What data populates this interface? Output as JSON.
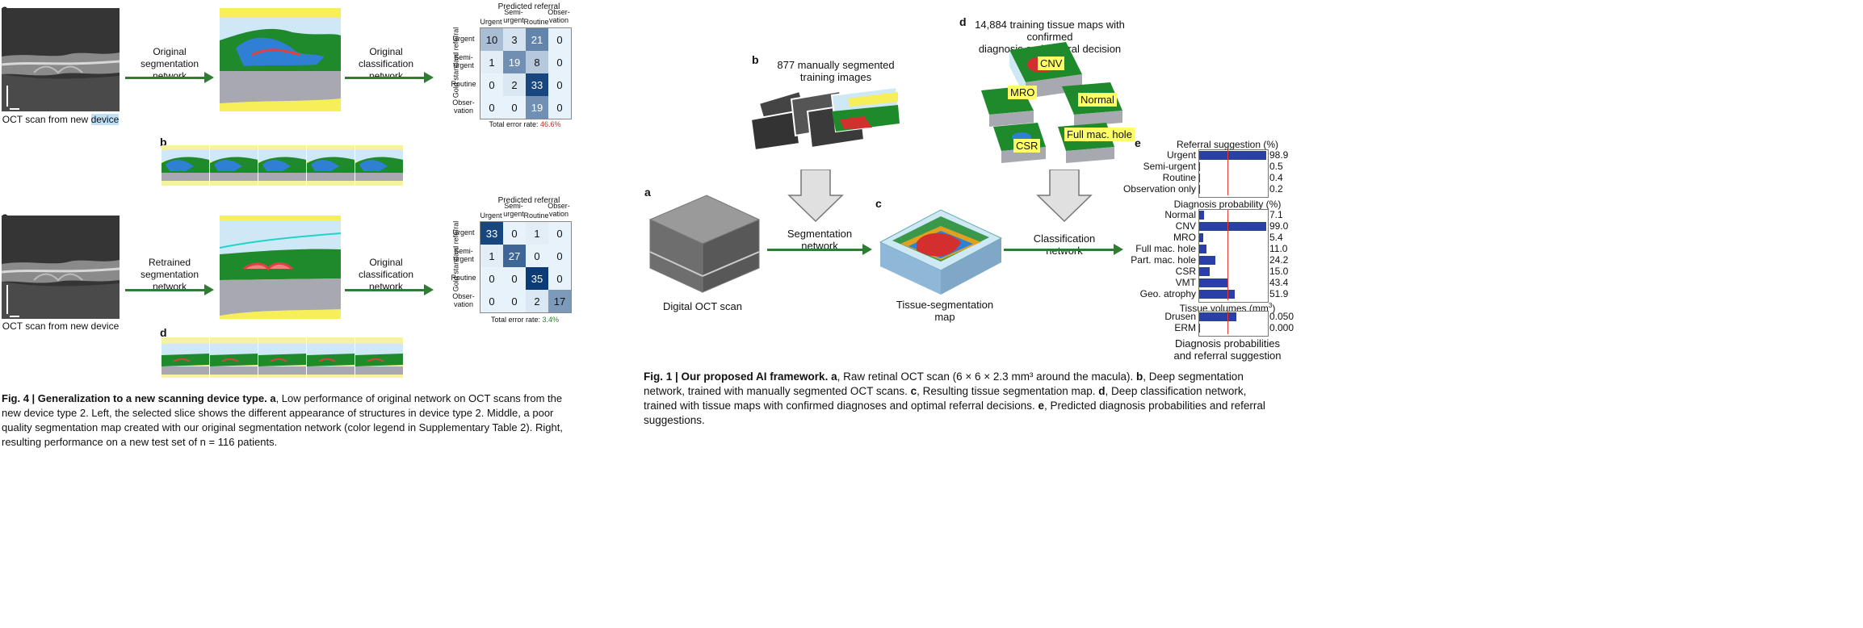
{
  "fig4": {
    "panel_a_letter": "a",
    "panel_b_letter": "b",
    "panel_c_letter": "c",
    "panel_d_letter": "d",
    "oct_label_a_prefix": "OCT scan from new ",
    "oct_label_a_highlight": "device",
    "oct_label_c": "OCT scan from new device",
    "arrow1_label": "Original\nsegmentation\nnetwork",
    "arrow2_label": "Original\nclassification\nnetwork",
    "arrow3_label": "Retrained\nsegmentation\nnetwork",
    "arrow4_label": "Original\nclassification\nnetwork",
    "cm_title": "Predicted referral",
    "cm_ylabel": "Gold standard referral",
    "cm_cols": [
      "Urgent",
      "Semi-\nurgent",
      "Routine",
      "Obser-\nvation"
    ],
    "cm_rows": [
      "Urgent",
      "Semi-\nurgent",
      "Routine",
      "Obser-\nvation"
    ],
    "cm_top": [
      [
        10,
        3,
        21,
        0
      ],
      [
        1,
        19,
        8,
        0
      ],
      [
        0,
        2,
        33,
        0
      ],
      [
        0,
        0,
        19,
        0
      ]
    ],
    "cm_bottom": [
      [
        33,
        0,
        1,
        0
      ],
      [
        1,
        27,
        0,
        0
      ],
      [
        0,
        0,
        35,
        0
      ],
      [
        0,
        0,
        2,
        17
      ]
    ],
    "err_top_prefix": "Total error rate: ",
    "err_top_value": "46.6%",
    "err_bottom_prefix": "Total error rate: ",
    "err_bottom_value": "3.4%",
    "caption_bold": "Fig. 4 | Generalization to a new scanning device type.",
    "caption_a_letter": " a",
    "caption_text": ", Low performance of original network on OCT scans from the new device type 2. Left, the selected slice shows the different appearance of structures in device type 2. Middle, a poor quality segmentation map created with our original segmentation network (color legend in Supplementary Table 2). Right, resulting performance on a new test set of n = 116 patients."
  },
  "fig1": {
    "panel_a_letter": "a",
    "panel_b_letter": "b",
    "panel_c_letter": "c",
    "panel_d_letter": "d",
    "panel_e_letter": "e",
    "b_label": "877 manually segmented\ntraining images",
    "d_label": "14,884 training tissue maps with confirmed\ndiagnosis and referral decision",
    "a_label": "Digital OCT scan",
    "c_label": "Tissue-segmentation map",
    "seg_net_label": "Segmentation network",
    "cls_net_label": "Classification network",
    "tags": [
      "CNV",
      "MRO",
      "Normal",
      "CSR",
      "Full mac. hole"
    ],
    "referral_title": "Referral suggestion (%)",
    "referral": [
      {
        "name": "Urgent",
        "value": "98.9",
        "fill": 0.989
      },
      {
        "name": "Semi-urgent",
        "value": "0.5",
        "fill": 0.005
      },
      {
        "name": "Routine",
        "value": "0.4",
        "fill": 0.004
      },
      {
        "name": "Observation only",
        "value": "0.2",
        "fill": 0.002
      }
    ],
    "diagnosis_title": "Diagnosis probability (%)",
    "diagnosis": [
      {
        "name": "Normal",
        "value": "7.1",
        "fill": 0.071
      },
      {
        "name": "CNV",
        "value": "99.0",
        "fill": 0.99
      },
      {
        "name": "MRO",
        "value": "5.4",
        "fill": 0.054
      },
      {
        "name": "Full mac. hole",
        "value": "11.0",
        "fill": 0.11
      },
      {
        "name": "Part. mac. hole",
        "value": "24.2",
        "fill": 0.242
      },
      {
        "name": "CSR",
        "value": "15.0",
        "fill": 0.15
      },
      {
        "name": "VMT",
        "value": "43.4",
        "fill": 0.434
      },
      {
        "name": "Geo. atrophy",
        "value": "51.9",
        "fill": 0.519
      }
    ],
    "tissue_title": "Tissue volumes (mm",
    "tissue_title_sup": "3",
    "tissue_title_end": ")",
    "tissue": [
      {
        "name": "Drusen",
        "value": "0.050",
        "fill": 0.55
      },
      {
        "name": "ERM",
        "value": "0.000",
        "fill": 0.0
      }
    ],
    "e_bottom_label": "Diagnosis probabilities\nand referral suggestion",
    "caption_bold": "Fig. 1 | Our proposed AI framework.",
    "caption_parts": [
      {
        "b": " a",
        "t": ", Raw retinal OCT scan (6 × 6 × 2.3 mm³ around the macula). "
      },
      {
        "b": "b",
        "t": ", Deep segmentation network, trained with manually segmented OCT scans. "
      },
      {
        "b": "c",
        "t": ", Resulting tissue segmentation map. "
      },
      {
        "b": "d",
        "t": ", Deep classification network, trained with tissue maps with confirmed diagnoses and optimal referral decisions. "
      },
      {
        "b": "e",
        "t": ", Predicted diagnosis probabilities and referral suggestions."
      }
    ]
  },
  "colors": {
    "arrow": "#2e7d32",
    "seg_yellow": "#f7ef5a",
    "seg_green": "#1f8a2c",
    "seg_blue": "#2f7fd4",
    "seg_gray": "#a8a8b0",
    "seg_light": "#cfe8f5",
    "cm_dark": "#0b3c78",
    "bar_blue": "#2a3fa8"
  }
}
